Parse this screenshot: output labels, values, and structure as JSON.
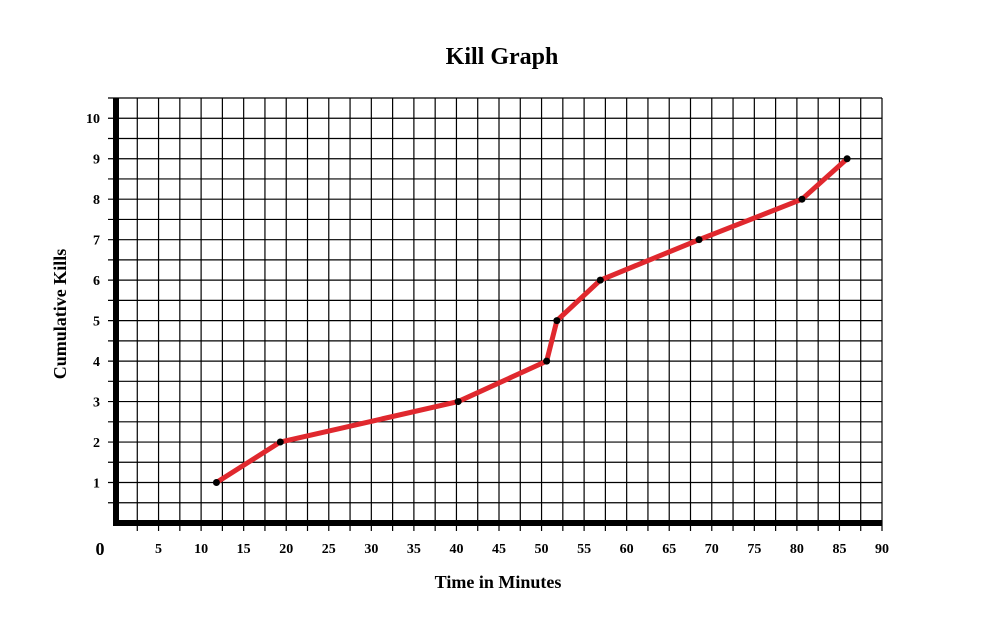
{
  "chart_data": {
    "type": "line",
    "title": "Kill Graph",
    "xlabel": "Time in Minutes",
    "ylabel": "Cumulative Kills",
    "origin_label": "0",
    "xlim": [
      0,
      90
    ],
    "ylim": [
      0,
      10.5
    ],
    "x_ticks": [
      5,
      10,
      15,
      20,
      25,
      30,
      35,
      40,
      45,
      50,
      55,
      60,
      65,
      70,
      75,
      80,
      85,
      90
    ],
    "y_ticks": [
      1,
      2,
      3,
      4,
      5,
      6,
      7,
      8,
      9,
      10
    ],
    "grid": true,
    "legend": "none",
    "line_color": "#e0282e",
    "marker_color": "#000000",
    "series": [
      {
        "x": [
          11.8,
          19.3,
          40.2,
          50.6,
          51.8,
          56.9,
          68.5,
          80.6,
          85.9
        ],
        "y": [
          1,
          2,
          3,
          4,
          5,
          6,
          7,
          8,
          9
        ]
      }
    ]
  }
}
